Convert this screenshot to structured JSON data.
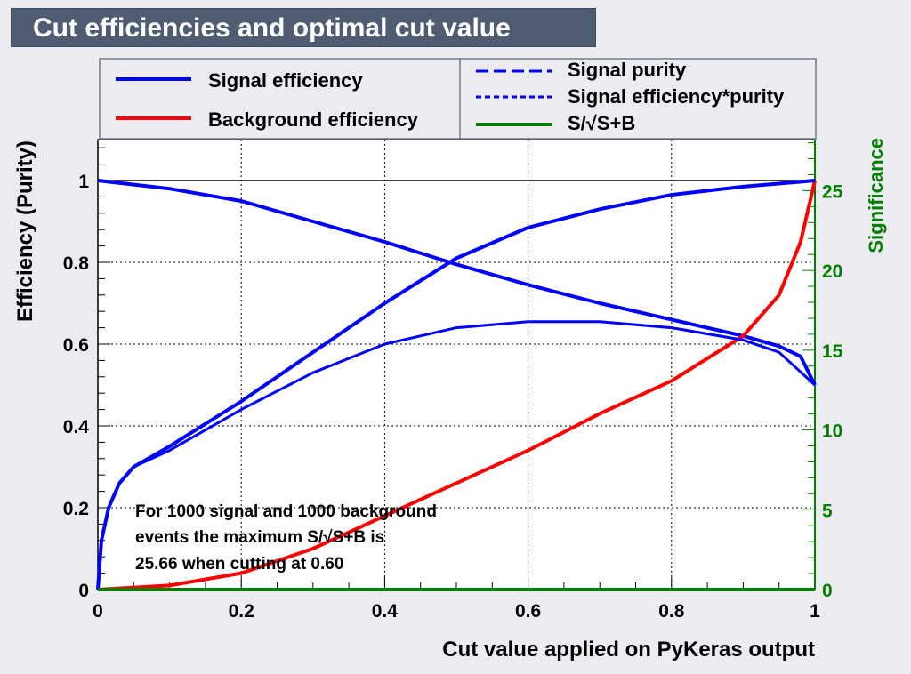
{
  "title": "Cut efficiencies and optimal cut value",
  "colors": {
    "signal": "#0000ff",
    "background": "#ff0000",
    "significance": "#008000",
    "title_bg": "#505c72"
  },
  "legend": {
    "left": [
      {
        "label": "Signal efficiency",
        "color": "#0000ff",
        "style": "solid"
      },
      {
        "label": "Background efficiency",
        "color": "#ff0000",
        "style": "solid"
      }
    ],
    "right": [
      {
        "label": "Signal purity",
        "color": "#0000ff",
        "style": "dashed"
      },
      {
        "label": "Signal efficiency*purity",
        "color": "#0000ff",
        "style": "dotted"
      },
      {
        "label": "S/√S+B",
        "color": "#008000",
        "style": "solid"
      }
    ]
  },
  "annotation": {
    "line1": "For 1000 signal and 1000 background",
    "line2": "events the maximum S/√S+B is",
    "line3": "25.66 when cutting at  0.60"
  },
  "chart_data": {
    "type": "line",
    "title": "Cut efficiencies and optimal cut value",
    "xlabel": "Cut value applied on PyKeras output",
    "ylabel": "Efficiency (Purity)",
    "y2label": "Significance",
    "xlim": [
      0,
      1
    ],
    "ylim": [
      0,
      1.1
    ],
    "y2lim": [
      0,
      28.2
    ],
    "grid": true,
    "legend_placement": "top",
    "xticks": [
      "0",
      "0.2",
      "0.4",
      "0.6",
      "0.8",
      "1"
    ],
    "yticks": [
      "0",
      "0.2",
      "0.4",
      "0.6",
      "0.8",
      "1"
    ],
    "y2ticks": [
      "0",
      "5",
      "10",
      "15",
      "20",
      "25"
    ],
    "series": [
      {
        "name": "Signal efficiency",
        "color": "#0000ff",
        "x": [
          0,
          0.1,
          0.2,
          0.3,
          0.4,
          0.5,
          0.6,
          0.7,
          0.8,
          0.9,
          0.95,
          0.98,
          1
        ],
        "y": [
          1,
          0.98,
          0.95,
          0.9,
          0.85,
          0.795,
          0.745,
          0.7,
          0.66,
          0.62,
          0.595,
          0.57,
          0.5
        ]
      },
      {
        "name": "Background efficiency",
        "color": "#ff0000",
        "x": [
          0,
          0.1,
          0.2,
          0.3,
          0.4,
          0.5,
          0.6,
          0.7,
          0.8,
          0.9,
          0.95,
          0.98,
          1
        ],
        "y": [
          0,
          0.01,
          0.04,
          0.1,
          0.18,
          0.26,
          0.34,
          0.43,
          0.51,
          0.62,
          0.72,
          0.85,
          1
        ]
      },
      {
        "name": "Signal purity",
        "color": "#0000ff",
        "x": [
          0,
          0.005,
          0.015,
          0.03,
          0.05,
          0.1,
          0.2,
          0.3,
          0.4,
          0.5,
          0.6,
          0.7,
          0.8,
          0.9,
          1
        ],
        "y": [
          0,
          0.12,
          0.2,
          0.26,
          0.3,
          0.35,
          0.46,
          0.58,
          0.7,
          0.81,
          0.885,
          0.93,
          0.965,
          0.985,
          1
        ]
      },
      {
        "name": "Signal efficiency*purity",
        "color": "#0000ff",
        "x": [
          0,
          0.005,
          0.015,
          0.03,
          0.05,
          0.1,
          0.2,
          0.3,
          0.4,
          0.5,
          0.6,
          0.7,
          0.8,
          0.9,
          0.95,
          1
        ],
        "y": [
          0,
          0.12,
          0.2,
          0.26,
          0.3,
          0.34,
          0.44,
          0.53,
          0.6,
          0.64,
          0.655,
          0.655,
          0.64,
          0.61,
          0.58,
          0.5
        ]
      },
      {
        "name": "S/√S+B",
        "color": "#008000",
        "axis": "right",
        "x": [
          0,
          1
        ],
        "y": [
          0,
          0
        ]
      }
    ]
  }
}
